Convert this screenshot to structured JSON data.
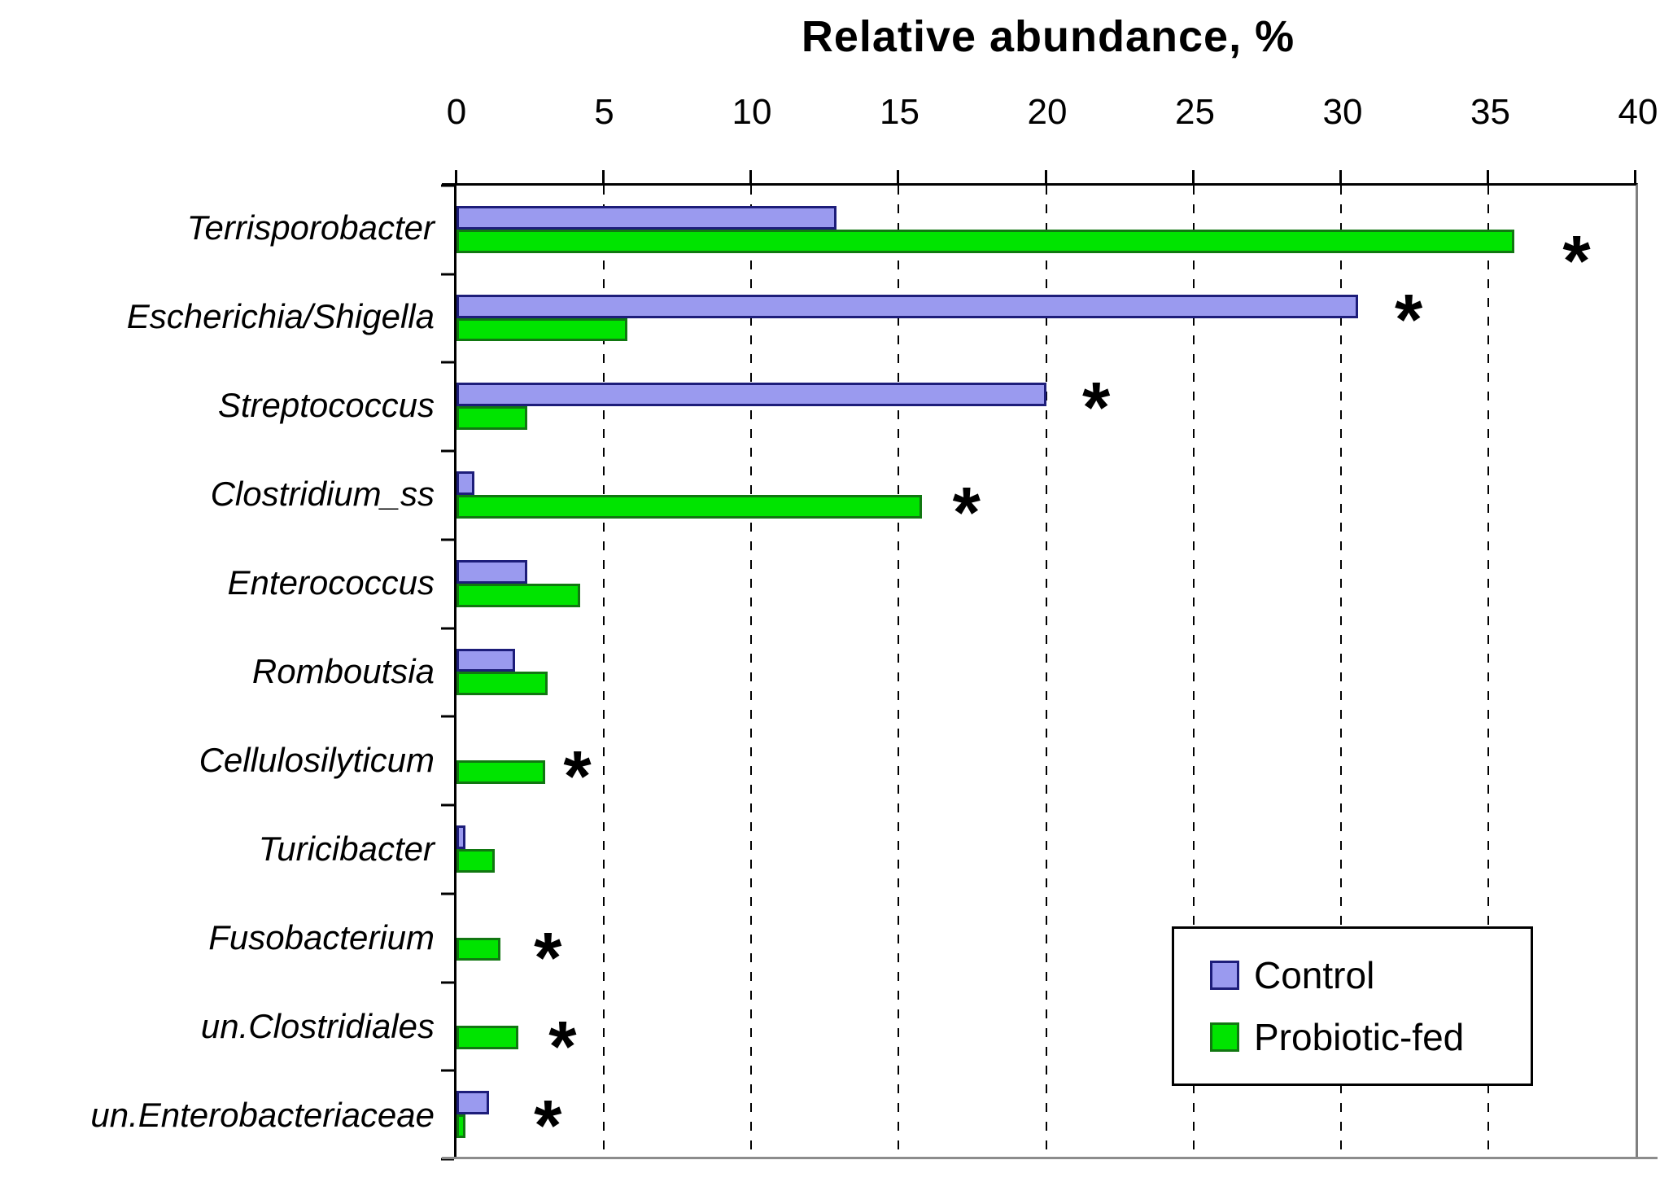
{
  "chart_data": {
    "type": "bar",
    "orientation": "horizontal",
    "title": "Relative abundance, %",
    "xlabel": "Relative abundance, %",
    "ylabel": "",
    "xlim": [
      0,
      40
    ],
    "xticks": [
      0,
      5,
      10,
      15,
      20,
      25,
      30,
      35,
      40
    ],
    "grid": "vertical dashed lines at each x tick",
    "legend_position": "inside bottom-right",
    "categories": [
      "Terrisporobacter",
      "Escherichia/Shigella",
      "Streptococcus",
      "Clostridium_ss",
      "Enterococcus",
      "Romboutsia",
      "Cellulosilyticum",
      "Turicibacter",
      "Fusobacterium",
      "un.Clostridiales",
      "un.Enterobacteriaceae"
    ],
    "series": [
      {
        "name": "Control",
        "color": "#9A9AEF",
        "border_color": "#1D1D7A",
        "values": [
          12.9,
          30.6,
          20.0,
          0.6,
          2.4,
          2.0,
          0,
          0.3,
          0,
          0,
          1.1
        ]
      },
      {
        "name": "Probiotic-fed",
        "color": "#00E400",
        "border_color": "#117711",
        "values": [
          35.9,
          5.8,
          2.4,
          15.8,
          4.2,
          3.1,
          3.0,
          1.3,
          1.5,
          2.1,
          0.3
        ]
      }
    ],
    "annotations": [
      {
        "symbol": "*",
        "meaning": "significant difference",
        "category": "Terrisporobacter",
        "category_index": 0,
        "marks_series": "Probiotic-fed",
        "x": 38.0,
        "slot_frac": 0.8
      },
      {
        "symbol": "*",
        "meaning": "significant difference",
        "category": "Escherichia/Shigella",
        "category_index": 1,
        "marks_series": "Control",
        "x": 32.3,
        "slot_frac": 0.46
      },
      {
        "symbol": "*",
        "meaning": "significant difference",
        "category": "Streptococcus",
        "category_index": 2,
        "marks_series": "Control",
        "x": 21.7,
        "slot_frac": 0.46
      },
      {
        "symbol": "*",
        "meaning": "significant difference",
        "category": "Clostridium_ss",
        "category_index": 3,
        "marks_series": "Probiotic-fed",
        "x": 17.3,
        "slot_frac": 0.64
      },
      {
        "symbol": "*",
        "meaning": "significant difference",
        "category": "Cellulosilyticum",
        "category_index": 6,
        "marks_series": "Probiotic-fed",
        "x": 4.1,
        "slot_frac": 0.62
      },
      {
        "symbol": "*",
        "meaning": "significant difference",
        "category": "Fusobacterium",
        "category_index": 8,
        "marks_series": "Probiotic-fed",
        "x": 3.1,
        "slot_frac": 0.67
      },
      {
        "symbol": "*",
        "meaning": "significant difference",
        "category": "un.Clostridiales",
        "category_index": 9,
        "marks_series": "Probiotic-fed",
        "x": 3.6,
        "slot_frac": 0.68
      },
      {
        "symbol": "*",
        "meaning": "significant difference",
        "category": "un.Enterobacteriaceae",
        "category_index": 10,
        "marks_series": "Probiotic-fed",
        "x": 3.1,
        "slot_frac": 0.57
      }
    ]
  }
}
